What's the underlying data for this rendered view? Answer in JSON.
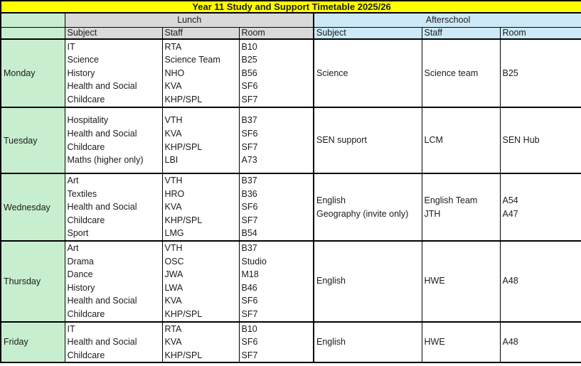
{
  "title": "Year 11 Study and Support Timetable 2025/26",
  "sections": {
    "lunch": "Lunch",
    "afterschool": "Afterschool"
  },
  "column_headers": [
    "Subject",
    "Staff",
    "Room"
  ],
  "colors": {
    "title_bg": "#FFFF00",
    "day_bg": "#C7EFCF",
    "lunch_bg": "#D9D9D9",
    "afterschool_bg": "#CDE9F7",
    "border": "#000000",
    "text": "#1b1b1b"
  },
  "days": [
    {
      "day": "Monday",
      "lunch": {
        "subjects": [
          "IT",
          "Science",
          "History",
          "Health and Social",
          "Childcare"
        ],
        "staff": [
          "RTA",
          "Science Team",
          "NHO",
          "KVA",
          "KHP/SPL"
        ],
        "rooms": [
          "B10",
          "B25",
          "B56",
          "SF6",
          "SF7"
        ]
      },
      "afterschool": {
        "subjects": [
          "Science"
        ],
        "staff": [
          "Science team"
        ],
        "rooms": [
          "B25"
        ]
      }
    },
    {
      "day": "Tuesday",
      "lunch": {
        "subjects": [
          "Hospitality",
          "Health and Social",
          "Childcare",
          "Maths (higher only)"
        ],
        "staff": [
          "VTH",
          "KVA",
          "KHP/SPL",
          "LBI"
        ],
        "rooms": [
          "B37",
          "SF6",
          "SF7",
          "A73"
        ]
      },
      "afterschool": {
        "subjects": [
          "SEN support"
        ],
        "staff": [
          "LCM"
        ],
        "rooms": [
          "SEN Hub"
        ]
      }
    },
    {
      "day": "Wednesday",
      "lunch": {
        "subjects": [
          "Art",
          "Textiles",
          "Health and Social",
          "Childcare",
          "Sport"
        ],
        "staff": [
          "VTH",
          "HRO",
          "KVA",
          "KHP/SPL",
          "LMG"
        ],
        "rooms": [
          "B37",
          "B36",
          "SF6",
          "SF7",
          "B54"
        ]
      },
      "afterschool": {
        "subjects": [
          "English",
          "Geography (invite only)"
        ],
        "staff": [
          "English Team",
          "JTH"
        ],
        "rooms": [
          "A54",
          "A47"
        ]
      }
    },
    {
      "day": "Thursday",
      "lunch": {
        "subjects": [
          "Art",
          "Drama",
          "Dance",
          "History",
          "Health and Social",
          "Childcare"
        ],
        "staff": [
          "VTH",
          "OSC",
          "JWA",
          "LWA",
          "KVA",
          "KHP/SPL"
        ],
        "rooms": [
          "B37",
          "Studio",
          "M18",
          "B46",
          "SF6",
          "SF7"
        ]
      },
      "afterschool": {
        "subjects": [
          "English"
        ],
        "staff": [
          "HWE"
        ],
        "rooms": [
          "A48"
        ]
      }
    },
    {
      "day": "Friday",
      "lunch": {
        "subjects": [
          "IT",
          "Health and Social",
          "Childcare"
        ],
        "staff": [
          "RTA",
          "KVA",
          "KHP/SPL"
        ],
        "rooms": [
          "B10",
          "SF6",
          "SF7"
        ]
      },
      "afterschool": {
        "subjects": [
          "English"
        ],
        "staff": [
          "HWE"
        ],
        "rooms": [
          "A48"
        ]
      }
    }
  ]
}
